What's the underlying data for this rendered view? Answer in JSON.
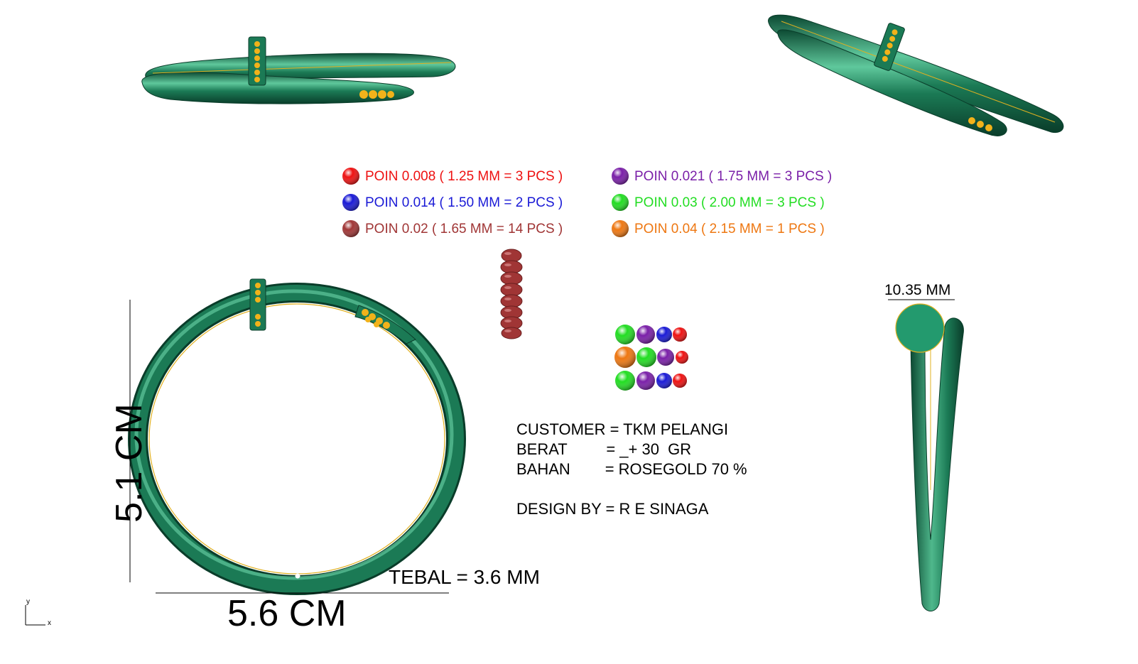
{
  "legend": [
    {
      "label": "POIN 0.008 ( 1.25 MM = 3 PCS )",
      "color": "#ee1111"
    },
    {
      "label": "POIN 0.014 ( 1.50 MM = 2 PCS )",
      "color": "#1a1ad6"
    },
    {
      "label": "POIN 0.02 ( 1.65 MM = 14 PCS )",
      "color": "#a03535"
    },
    {
      "label": "POIN 0.021 ( 1.75 MM = 3 PCS )",
      "color": "#7a1fa8"
    },
    {
      "label": "POIN 0.03 ( 2.00 MM = 3 PCS )",
      "color": "#22dd22"
    },
    {
      "label": "POIN 0.04 ( 2.15 MM = 1 PCS )",
      "color": "#ee7711"
    }
  ],
  "info": {
    "customer": "CUSTOMER = TKM PELANGI",
    "berat": "BERAT         = _+ 30  GR",
    "bahan": "BAHAN        = ROSEGOLD 70 %",
    "design": "DESIGN BY = R E SINAGA"
  },
  "dimensions": {
    "height": "5.1 CM",
    "width": "5.6 CM",
    "thickness": "TEBAL = 3.6 MM",
    "side_width": "10.35 MM"
  },
  "axis": {
    "y": "y",
    "x": "x"
  },
  "colors": {
    "metal": "#1b7a55",
    "metal_dark": "#0c4a33",
    "metal_light": "#5fc89c",
    "stone_setting": "#f2b21a",
    "outline": "#e0b020"
  }
}
